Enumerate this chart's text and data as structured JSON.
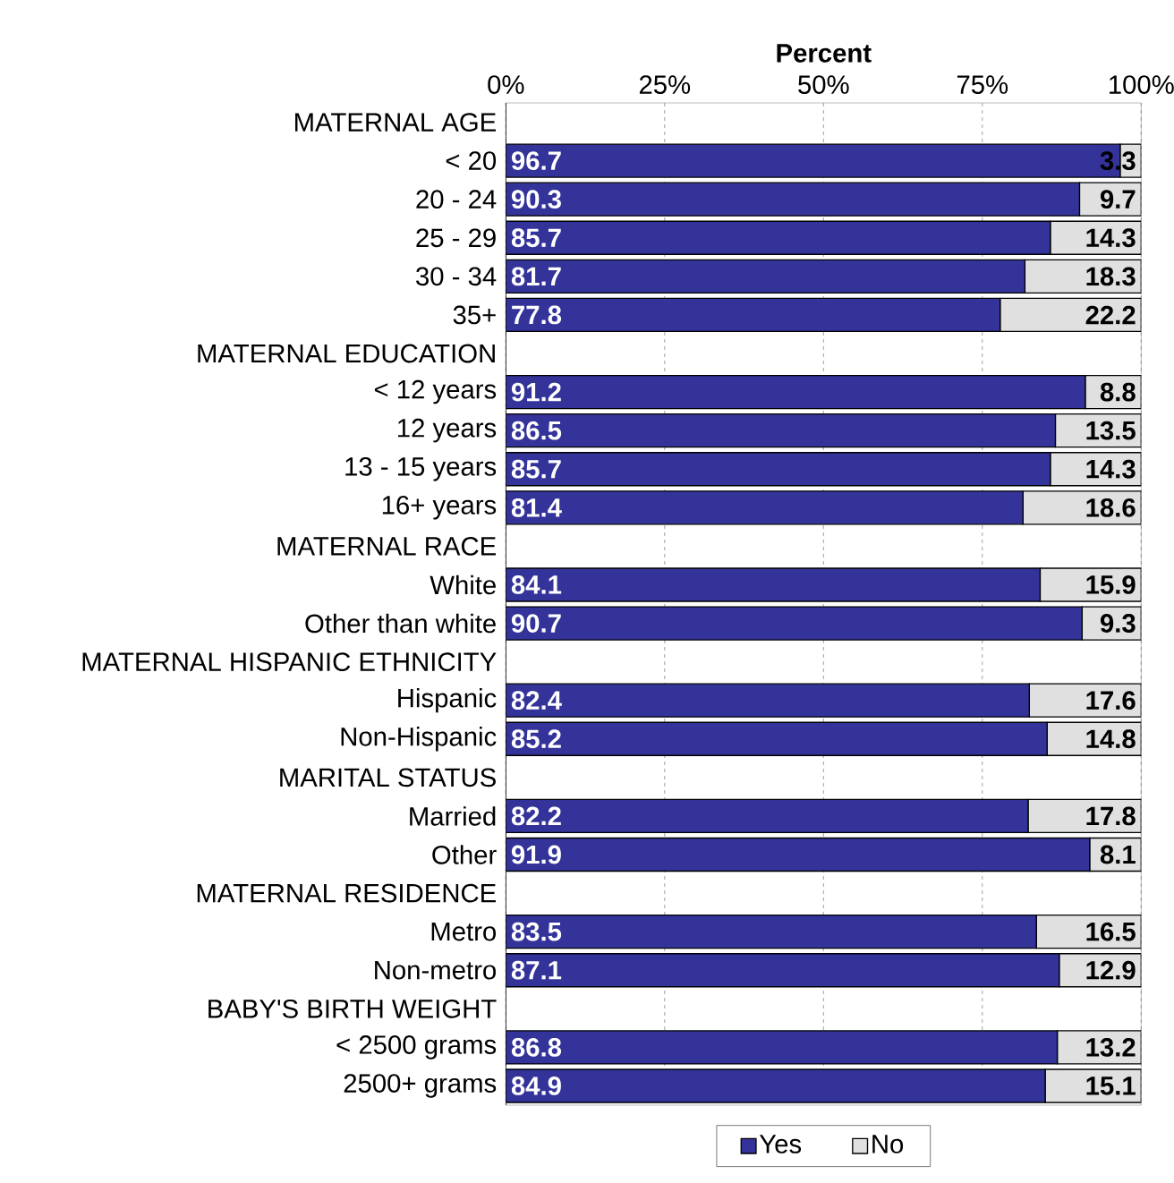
{
  "chart_data": {
    "type": "bar",
    "orientation": "horizontal",
    "stacked": true,
    "xlabel": "Percent",
    "categories": [
      "MATERNAL AGE",
      "< 20",
      "20 - 24",
      "25 - 29",
      "30 - 34",
      "35+",
      "MATERNAL EDUCATION",
      "< 12 years",
      "12 years",
      "13 - 15 years",
      "16+ years",
      "MATERNAL RACE",
      "White",
      "Other than white",
      "MATERNAL HISPANIC ETHNICITY",
      "Hispanic",
      "Non-Hispanic",
      "MARITAL STATUS",
      "Married",
      "Other",
      "MATERNAL RESIDENCE",
      "Metro",
      "Non-metro",
      "BABY'S BIRTH WEIGHT",
      "< 2500 grams",
      "2500+ grams"
    ],
    "series": [
      {
        "name": "Yes",
        "color": "#333399",
        "values": [
          null,
          96.7,
          90.3,
          85.7,
          81.7,
          77.8,
          null,
          91.2,
          86.5,
          85.7,
          81.4,
          null,
          84.1,
          90.7,
          null,
          82.4,
          85.2,
          null,
          82.2,
          91.9,
          null,
          83.5,
          87.1,
          null,
          86.8,
          84.9
        ]
      },
      {
        "name": "No",
        "color": "#e0e0e0",
        "values": [
          null,
          3.3,
          9.7,
          14.3,
          18.3,
          22.2,
          null,
          8.8,
          13.5,
          14.3,
          18.6,
          null,
          15.9,
          9.3,
          null,
          17.6,
          14.8,
          null,
          17.8,
          8.1,
          null,
          16.5,
          12.9,
          null,
          13.2,
          15.1
        ]
      }
    ],
    "xlim": [
      0,
      100
    ],
    "xticks": [
      {
        "value": 0,
        "label": "0%"
      },
      {
        "value": 25,
        "label": "25%"
      },
      {
        "value": 50,
        "label": "50%"
      },
      {
        "value": 75,
        "label": "75%"
      },
      {
        "value": 100,
        "label": "100%"
      }
    ],
    "grid": "x",
    "legend": "bottom",
    "data_labels": true
  }
}
